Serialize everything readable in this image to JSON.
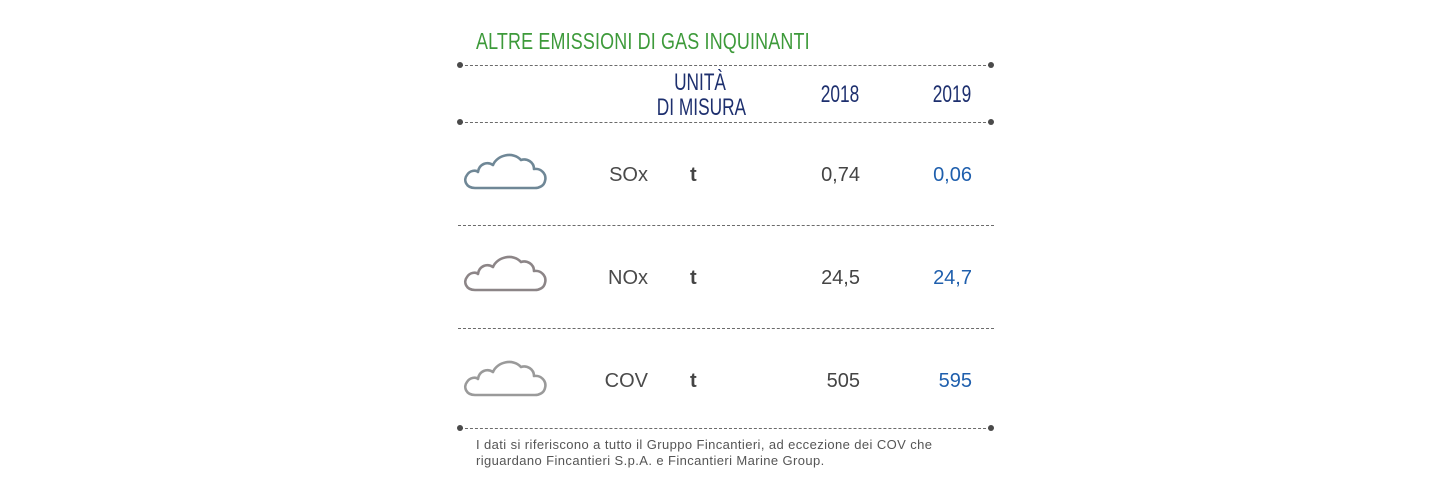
{
  "title": "ALTRE EMISSIONI DI GAS INQUINANTI",
  "header": {
    "unit_line1": "UNITÀ",
    "unit_line2": "DI MISURA",
    "col_2018": "2018",
    "col_2019": "2019"
  },
  "rows": [
    {
      "name": "SOx",
      "unit": "t",
      "v2018": "0,74",
      "v2019": "0,06",
      "icon": "cloud-icon",
      "icon_color": "#6f8796"
    },
    {
      "name": "NOx",
      "unit": "t",
      "v2018": "24,5",
      "v2019": "24,7",
      "icon": "cloud-icon",
      "icon_color": "#8c8587"
    },
    {
      "name": "COV",
      "unit": "t",
      "v2018": "505",
      "v2019": "595",
      "icon": "cloud-icon",
      "icon_color": "#9a9a9a"
    }
  ],
  "note": "I dati si riferiscono a tutto il Gruppo Fincantieri, ad eccezione dei COV che riguardano Fincantieri S.p.A. e Fincantieri Marine Group.",
  "colors": {
    "title": "#3d9a3a",
    "header": "#1d2f6e",
    "value_2019": "#1f5fad"
  }
}
